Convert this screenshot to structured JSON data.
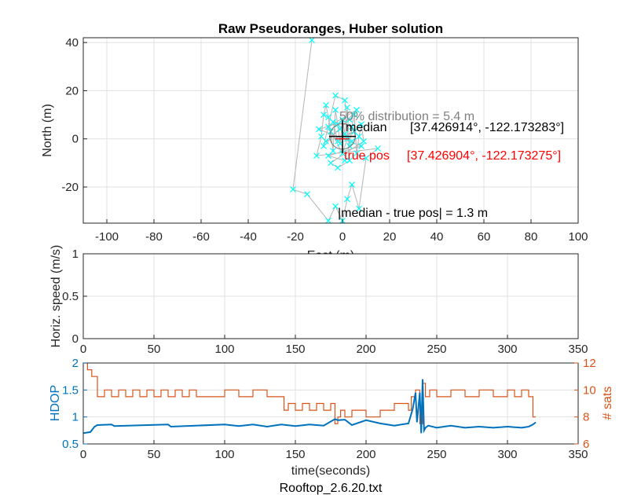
{
  "figure": {
    "title": "Raw Pseudoranges, Huber solution",
    "footer": "Rooftop_2.6.20.txt"
  },
  "chart_data": [
    {
      "type": "scatter",
      "name": "position-scatter",
      "title": "Raw Pseudoranges, Huber solution",
      "xlabel": "East (m)",
      "ylabel": "North (m)",
      "xlim": [
        -110,
        100
      ],
      "ylim": [
        -35,
        42
      ],
      "xticks": [
        -100,
        -80,
        -60,
        -40,
        -20,
        0,
        20,
        40,
        60,
        80,
        100
      ],
      "yticks": [
        -20,
        0,
        20,
        40
      ],
      "grid": true,
      "colors": {
        "points": "#00ffff",
        "track": "#b4b4b4",
        "median": "#000000",
        "true_pos": "#ff0000",
        "dist": "#808080"
      },
      "points": [
        [
          -13,
          41
        ],
        [
          -21,
          -21
        ],
        [
          -15,
          -23
        ],
        [
          -6,
          -34
        ],
        [
          -3,
          -28
        ],
        [
          0,
          -34
        ],
        [
          2,
          -25
        ],
        [
          4,
          -19
        ],
        [
          7,
          -29
        ],
        [
          10,
          -8
        ],
        [
          15,
          -4
        ],
        [
          -11,
          -7
        ],
        [
          -9,
          1
        ],
        [
          -8,
          10
        ],
        [
          -7,
          14
        ],
        [
          -6,
          9
        ],
        [
          -5,
          3
        ],
        [
          -4,
          -5
        ],
        [
          -3,
          12
        ],
        [
          -2,
          6
        ],
        [
          -1,
          -2
        ],
        [
          0,
          8
        ],
        [
          1,
          2
        ],
        [
          2,
          13
        ],
        [
          3,
          -3
        ],
        [
          4,
          5
        ],
        [
          5,
          10
        ],
        [
          6,
          -6
        ],
        [
          7,
          1
        ],
        [
          8,
          6
        ],
        [
          9,
          -1
        ],
        [
          -5,
          -10
        ],
        [
          -2,
          -12
        ],
        [
          3,
          -9
        ],
        [
          1,
          16
        ],
        [
          -3,
          18
        ],
        [
          -8,
          -3
        ],
        [
          6,
          12
        ],
        [
          -6,
          5
        ],
        [
          0,
          -6
        ],
        [
          2,
          0
        ],
        [
          -1,
          4
        ],
        [
          4,
          -1
        ],
        [
          -4,
          7
        ],
        [
          -2,
          -1
        ],
        [
          5,
          3
        ],
        [
          -7,
          -1
        ],
        [
          3,
          8
        ],
        [
          -10,
          4
        ],
        [
          8,
          -3
        ],
        [
          -6,
          -7
        ],
        [
          1,
          -9
        ]
      ],
      "median_label": "median",
      "median_coords": "[37.426914°, -122.173283°]",
      "true_pos_label": "true pos",
      "true_pos_coords": "[37.426904°, -122.173275°]",
      "distribution_label": "50% distribution = 5.4 m",
      "error_label": "|median - true pos| = 1.3 m"
    },
    {
      "type": "line",
      "name": "horizontal-speed",
      "xlabel": "",
      "ylabel": "Horiz. speed (m/s)",
      "xlim": [
        0,
        350
      ],
      "ylim": [
        0,
        1
      ],
      "xticks": [
        0,
        50,
        100,
        150,
        200,
        250,
        300,
        350
      ],
      "yticks": [
        0,
        0.5,
        1
      ],
      "grid": true,
      "series": []
    },
    {
      "type": "line",
      "name": "hdop-and-sats",
      "xlabel": "time(seconds)",
      "ylabel_left": "HDOP",
      "ylabel_right": "# sats",
      "xlim": [
        0,
        350
      ],
      "ylim_left": [
        0.5,
        2
      ],
      "ylim_right": [
        6,
        12
      ],
      "xticks": [
        0,
        50,
        100,
        150,
        200,
        250,
        300,
        350
      ],
      "yticks_left": [
        0.5,
        1,
        1.5,
        2
      ],
      "yticks_right": [
        6,
        8,
        10,
        12
      ],
      "grid": true,
      "colors": {
        "hdop": "#0072bd",
        "sats": "#d95319"
      },
      "series": [
        {
          "x": [
            0,
            5,
            8,
            10,
            20,
            22,
            60,
            62,
            100,
            110,
            120,
            130,
            140,
            150,
            160,
            170,
            178,
            180,
            185,
            190,
            200,
            210,
            220,
            230,
            233,
            235,
            236,
            238,
            239,
            240,
            241,
            242,
            244,
            250,
            260,
            270,
            280,
            290,
            300,
            310,
            315,
            318,
            320
          ],
          "values": [
            0.7,
            0.72,
            0.82,
            0.85,
            0.86,
            0.83,
            0.86,
            0.82,
            0.86,
            0.83,
            0.86,
            0.82,
            0.86,
            0.83,
            0.86,
            0.84,
            0.96,
            0.94,
            0.95,
            0.85,
            0.94,
            0.88,
            0.84,
            0.88,
            1.15,
            1.45,
            0.9,
            1.45,
            0.7,
            1.7,
            0.75,
            0.8,
            0.84,
            0.8,
            0.84,
            0.8,
            0.82,
            0.8,
            0.82,
            0.8,
            0.82,
            0.86,
            0.9
          ]
        },
        {
          "x": [
            0,
            3,
            6,
            10,
            15,
            20,
            25,
            30,
            35,
            40,
            45,
            50,
            55,
            60,
            65,
            70,
            75,
            80,
            90,
            100,
            110,
            120,
            130,
            140,
            142,
            145,
            150,
            155,
            160,
            165,
            170,
            175,
            178,
            180,
            182,
            185,
            190,
            200,
            210,
            220,
            230,
            232,
            235,
            238,
            240,
            242,
            245,
            250,
            260,
            270,
            280,
            290,
            300,
            305,
            310,
            315,
            318,
            320
          ],
          "values": [
            12,
            11.5,
            11,
            9.5,
            10,
            9.5,
            10,
            9.5,
            10,
            9.5,
            10,
            9.5,
            10,
            9.5,
            10,
            9.5,
            10,
            9.5,
            9.5,
            10,
            9.5,
            10,
            9.5,
            9.5,
            8.5,
            9,
            8.5,
            9,
            8.5,
            9,
            8.5,
            9,
            7.5,
            8,
            8.5,
            8,
            8.5,
            8,
            8.5,
            9,
            8.5,
            9.5,
            10,
            7.5,
            10.5,
            9.5,
            10,
            9.5,
            10,
            9.5,
            10,
            9.5,
            10,
            9.5,
            10,
            9.5,
            8,
            8
          ]
        }
      ]
    }
  ]
}
